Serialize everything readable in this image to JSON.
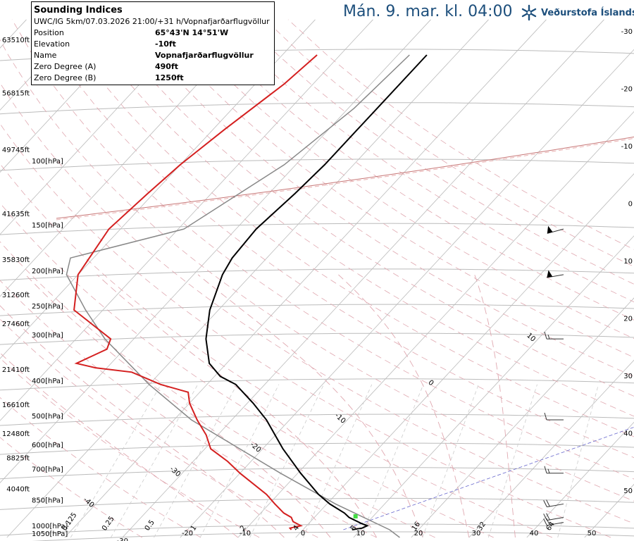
{
  "header": {
    "valid_time": "Mán. 9. mar. kl. 04:00"
  },
  "brand": {
    "name": "Veðurstofa Íslands",
    "color": "#1d4f7c",
    "icon": "snowflake-logo-icon"
  },
  "info_box": {
    "title": "Sounding Indices",
    "subtitle": "UWC/IG 5km/07.03.2026 21:00/+31 h/Vopnafjarðarflugvöllur",
    "rows": [
      {
        "label": "Position",
        "value": "65°43'N 14°51'W"
      },
      {
        "label": "Elevation",
        "value": "-10ft"
      },
      {
        "label": "Name",
        "value": "Vopnafjarðarflugvöllur"
      },
      {
        "label": "Zero Degree (A)",
        "value": "490ft"
      },
      {
        "label": "Zero Degree (B)",
        "value": "1250ft"
      }
    ]
  },
  "chart_data": {
    "type": "line",
    "title": "",
    "colors": {
      "temperature": "#000000",
      "dewpoint": "#d42020",
      "parcel": "#888888",
      "isobar": "#bbbbbb",
      "isotherm": "#bbbbbb",
      "dry_adiabat": "#e0a8b0",
      "moist_adiabat": "#e0a8b0",
      "mixing_ratio": "#cccccc",
      "cursor": "#6666cc"
    },
    "pressure_labels": [
      {
        "p": 1000,
        "label": "1000[hPa]"
      },
      {
        "p": 1050,
        "label": "1050[hPa]"
      },
      {
        "p": 850,
        "label": "850[hPa]",
        "alt": "4040ft"
      },
      {
        "p": 700,
        "label": "700[hPa]",
        "alt": "8825ft"
      },
      {
        "p": 600,
        "label": "600[hPa]",
        "alt": "12480ft"
      },
      {
        "p": 500,
        "label": "500[hPa]",
        "alt": "16610ft"
      },
      {
        "p": 400,
        "label": "400[hPa]",
        "alt": "21410ft"
      },
      {
        "p": 300,
        "label": "300[hPa]",
        "alt": "27460ft"
      },
      {
        "p": 250,
        "label": "250[hPa]",
        "alt": "31260ft"
      },
      {
        "p": 200,
        "label": "200[hPa]",
        "alt": "35830ft"
      },
      {
        "p": 150,
        "label": "150[hPa]",
        "alt": "41635ft"
      },
      {
        "p": 100,
        "label": "100[hPa]",
        "alt": "49745ft"
      },
      {
        "p": 70,
        "label": "",
        "alt": "56815ft"
      },
      {
        "p": 50,
        "label": "",
        "alt": "63510ft"
      }
    ],
    "isotherm_labels": [
      {
        "t": -30,
        "label": "-30",
        "p": 1050
      },
      {
        "t": -20,
        "label": "-20",
        "p": 1000
      },
      {
        "t": -10,
        "label": "-10",
        "p": 1000
      },
      {
        "t": 0,
        "label": "0",
        "p": 1000
      },
      {
        "t": 10,
        "label": "10",
        "p": 1000
      },
      {
        "t": 20,
        "label": "20",
        "p": 1000
      },
      {
        "t": 30,
        "label": "30",
        "p": 1000
      },
      {
        "t": 40,
        "label": "40",
        "p": 1000
      },
      {
        "t": 50,
        "label": "50",
        "p": 1000
      },
      {
        "t": -40,
        "label": "-40",
        "p": 850
      },
      {
        "t": -30,
        "label": "-30",
        "p": 700
      },
      {
        "t": -20,
        "label": "-20",
        "p": 600
      },
      {
        "t": -10,
        "label": "-10",
        "p": 500
      },
      {
        "t": 0,
        "label": "0",
        "p": 400
      },
      {
        "t": 10,
        "label": "10",
        "p": 300
      },
      {
        "t": 20,
        "label": "20",
        "p": 200
      },
      {
        "t": 30,
        "label": "30",
        "p": 100
      }
    ],
    "mixing_ratio_labels": [
      "0.125",
      "0.25",
      "0.5",
      "1",
      "2",
      "4",
      "8",
      "16",
      "32",
      "64"
    ],
    "mixing_ratios": [
      0.125,
      0.25,
      0.5,
      1,
      2,
      4,
      8,
      16,
      32,
      64
    ],
    "right_axis_labels": [
      "-30",
      "-20",
      "-10",
      "0",
      "10",
      "20",
      "30",
      "40",
      "50"
    ],
    "temperature": [
      [
        1000,
        8.5
      ],
      [
        990,
        10
      ],
      [
        975,
        10.5
      ],
      [
        960,
        9
      ],
      [
        925,
        6
      ],
      [
        900,
        4.5
      ],
      [
        850,
        0.5
      ],
      [
        800,
        -3
      ],
      [
        700,
        -9.5
      ],
      [
        600,
        -16.5
      ],
      [
        500,
        -24
      ],
      [
        450,
        -29
      ],
      [
        400,
        -35
      ],
      [
        380,
        -39
      ],
      [
        350,
        -43
      ],
      [
        300,
        -47.5
      ],
      [
        250,
        -51.5
      ],
      [
        200,
        -55
      ],
      [
        180,
        -56
      ],
      [
        150,
        -56.5
      ],
      [
        120,
        -55.5
      ],
      [
        100,
        -55
      ],
      [
        80,
        -55
      ],
      [
        70,
        -55
      ],
      [
        50,
        -55
      ]
    ],
    "dewpoint": [
      [
        1000,
        -2
      ],
      [
        990,
        -2.5
      ],
      [
        975,
        -1
      ],
      [
        950,
        -3
      ],
      [
        925,
        -4
      ],
      [
        900,
        -6
      ],
      [
        850,
        -9
      ],
      [
        800,
        -12
      ],
      [
        700,
        -20
      ],
      [
        650,
        -24
      ],
      [
        600,
        -29
      ],
      [
        550,
        -32
      ],
      [
        500,
        -36
      ],
      [
        450,
        -40
      ],
      [
        420,
        -42
      ],
      [
        400,
        -48
      ],
      [
        370,
        -55
      ],
      [
        360,
        -62
      ],
      [
        350,
        -66
      ],
      [
        320,
        -63
      ],
      [
        300,
        -64
      ],
      [
        250,
        -75
      ],
      [
        200,
        -80
      ],
      [
        150,
        -82
      ],
      [
        120,
        -81
      ],
      [
        100,
        -80
      ],
      [
        80,
        -78
      ],
      [
        60,
        -75
      ],
      [
        50,
        -74
      ]
    ],
    "parcel": [
      [
        1050,
        18
      ],
      [
        1000,
        15
      ],
      [
        850,
        1.5
      ],
      [
        700,
        -13
      ],
      [
        500,
        -37
      ],
      [
        400,
        -50
      ],
      [
        300,
        -65
      ],
      [
        250,
        -73
      ],
      [
        200,
        -82
      ],
      [
        180,
        -84
      ],
      [
        150,
        -69
      ],
      [
        100,
        -62
      ],
      [
        70,
        -59
      ],
      [
        50,
        -58
      ]
    ],
    "cursor_line": [
      [
        1000,
        7
      ],
      [
        115,
        120
      ]
    ],
    "marker": {
      "p": 1000,
      "t": 8.5
    },
    "wind_barbs": [
      {
        "p": 955,
        "speed_kt": 20,
        "direction": 260
      },
      {
        "p": 925,
        "speed_kt": 20,
        "direction": 260
      },
      {
        "p": 850,
        "speed_kt": 20,
        "direction": 260
      },
      {
        "p": 700,
        "speed_kt": 15,
        "direction": 270
      },
      {
        "p": 500,
        "speed_kt": 10,
        "direction": 270
      },
      {
        "p": 300,
        "speed_kt": 15,
        "direction": 270
      },
      {
        "p": 200,
        "speed_kt": 50,
        "direction": 260
      },
      {
        "p": 150,
        "speed_kt": 50,
        "direction": 255
      }
    ]
  }
}
